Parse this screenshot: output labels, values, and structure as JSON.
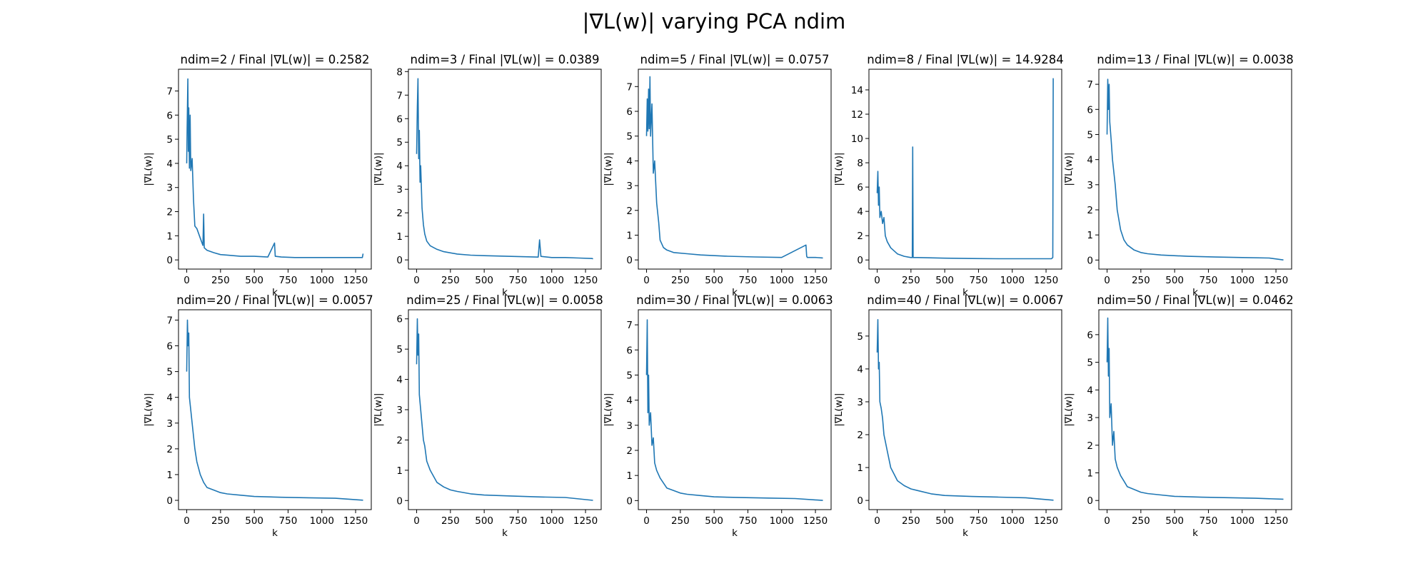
{
  "figure": {
    "title": "|∇L(w)| varying PCA ndim"
  },
  "colors": {
    "series": "#1f77b4"
  },
  "chart_data": [
    {
      "type": "line",
      "title": "ndim=2 / Final |∇L(w)| = 0.2582",
      "xlabel": "k",
      "ylabel": "|∇L(w)|",
      "xlim": [
        -61,
        1366
      ],
      "ylim": [
        -0.38,
        7.9
      ],
      "x_ticks": [
        0,
        250,
        500,
        750,
        1000,
        1250
      ],
      "y_ticks": [
        0,
        1,
        2,
        3,
        4,
        5,
        6,
        7
      ],
      "series": [
        {
          "x": [
            0,
            3,
            8,
            12,
            15,
            20,
            25,
            30,
            40,
            50,
            60,
            75,
            100,
            120,
            125,
            130,
            150,
            200,
            250,
            300,
            400,
            500,
            600,
            650,
            655,
            700,
            800,
            900,
            1000,
            1100,
            1200,
            1300,
            1305
          ],
          "y": [
            4.0,
            5.5,
            7.5,
            4.5,
            6.3,
            3.8,
            6.0,
            3.7,
            4.2,
            2.5,
            1.4,
            1.3,
            0.9,
            0.6,
            1.9,
            0.5,
            0.4,
            0.3,
            0.22,
            0.2,
            0.15,
            0.15,
            0.12,
            0.7,
            0.15,
            0.12,
            0.1,
            0.1,
            0.1,
            0.1,
            0.1,
            0.1,
            0.26
          ]
        }
      ]
    },
    {
      "type": "line",
      "title": "ndim=3 / Final |∇L(w)| = 0.0389",
      "xlabel": "k",
      "ylabel": "|∇L(w)|",
      "xlim": [
        -61,
        1366
      ],
      "ylim": [
        -0.39,
        8.1
      ],
      "x_ticks": [
        0,
        250,
        500,
        750,
        1000,
        1250
      ],
      "y_ticks": [
        0,
        1,
        2,
        3,
        4,
        5,
        6,
        7,
        8
      ],
      "series": [
        {
          "x": [
            0,
            5,
            10,
            15,
            20,
            25,
            30,
            40,
            50,
            60,
            75,
            100,
            150,
            200,
            300,
            400,
            500,
            700,
            900,
            910,
            920,
            1000,
            1100,
            1200,
            1300,
            1305
          ],
          "y": [
            4.5,
            6.5,
            7.7,
            4.3,
            5.5,
            3.3,
            4.0,
            2.2,
            1.5,
            1.1,
            0.8,
            0.6,
            0.45,
            0.35,
            0.25,
            0.2,
            0.18,
            0.15,
            0.12,
            0.85,
            0.15,
            0.1,
            0.1,
            0.08,
            0.06,
            0.04
          ]
        }
      ]
    },
    {
      "type": "line",
      "title": "ndim=5 / Final |∇L(w)| = 0.0757",
      "xlabel": "k",
      "ylabel": "|∇L(w)|",
      "xlim": [
        -61,
        1366
      ],
      "ylim": [
        -0.37,
        7.7
      ],
      "x_ticks": [
        0,
        250,
        500,
        750,
        1000,
        1250
      ],
      "y_ticks": [
        0,
        1,
        2,
        3,
        4,
        5,
        6,
        7
      ],
      "series": [
        {
          "x": [
            0,
            5,
            10,
            15,
            20,
            25,
            30,
            40,
            50,
            60,
            75,
            90,
            100,
            125,
            150,
            200,
            300,
            400,
            600,
            800,
            1000,
            1180,
            1185,
            1190,
            1250,
            1305
          ],
          "y": [
            5.0,
            6.5,
            5.2,
            6.9,
            5.3,
            7.4,
            5.0,
            6.3,
            3.5,
            4.0,
            2.3,
            1.5,
            0.8,
            0.5,
            0.4,
            0.3,
            0.25,
            0.2,
            0.15,
            0.12,
            0.1,
            0.6,
            0.15,
            0.1,
            0.1,
            0.08
          ]
        }
      ]
    },
    {
      "type": "line",
      "title": "ndim=8 / Final |∇L(w)| = 14.9284",
      "xlabel": "k",
      "ylabel": "|∇L(w)|",
      "xlim": [
        -61,
        1366
      ],
      "ylim": [
        -0.75,
        15.7
      ],
      "x_ticks": [
        0,
        250,
        500,
        750,
        1000,
        1250
      ],
      "y_ticks": [
        0,
        2,
        4,
        6,
        8,
        10,
        12,
        14
      ],
      "series": [
        {
          "x": [
            0,
            5,
            10,
            15,
            20,
            30,
            40,
            50,
            60,
            75,
            100,
            150,
            200,
            250,
            260,
            263,
            266,
            300,
            500,
            700,
            900,
            1100,
            1290,
            1300,
            1303,
            1305
          ],
          "y": [
            5.5,
            7.3,
            4.5,
            6.0,
            3.5,
            4.0,
            3.0,
            3.5,
            2.0,
            1.5,
            1.0,
            0.5,
            0.3,
            0.2,
            0.2,
            9.3,
            0.2,
            0.2,
            0.15,
            0.12,
            0.1,
            0.1,
            0.1,
            0.2,
            14.93,
            14.93
          ]
        }
      ]
    },
    {
      "type": "line",
      "title": "ndim=13 / Final |∇L(w)| = 0.0038",
      "xlabel": "k",
      "ylabel": "|∇L(w)|",
      "xlim": [
        -61,
        1366
      ],
      "ylim": [
        -0.36,
        7.6
      ],
      "x_ticks": [
        0,
        250,
        500,
        750,
        1000,
        1250
      ],
      "y_ticks": [
        0,
        1,
        2,
        3,
        4,
        5,
        6,
        7
      ],
      "series": [
        {
          "x": [
            0,
            5,
            10,
            15,
            20,
            30,
            40,
            50,
            60,
            75,
            100,
            125,
            150,
            200,
            250,
            300,
            400,
            600,
            800,
            1000,
            1200,
            1305
          ],
          "y": [
            5.0,
            7.2,
            6.0,
            7.0,
            5.5,
            4.8,
            4.0,
            3.5,
            3.0,
            2.0,
            1.2,
            0.8,
            0.6,
            0.4,
            0.3,
            0.25,
            0.2,
            0.15,
            0.12,
            0.1,
            0.08,
            0.004
          ]
        }
      ]
    },
    {
      "type": "line",
      "title": "ndim=20 / Final |∇L(w)| = 0.0057",
      "xlabel": "k",
      "ylabel": "|∇L(w)|",
      "xlim": [
        -61,
        1366
      ],
      "ylim": [
        -0.36,
        7.4
      ],
      "x_ticks": [
        0,
        250,
        500,
        750,
        1000,
        1250
      ],
      "y_ticks": [
        0,
        1,
        2,
        3,
        4,
        5,
        6,
        7
      ],
      "series": [
        {
          "x": [
            0,
            5,
            10,
            15,
            20,
            30,
            40,
            50,
            60,
            75,
            100,
            125,
            150,
            200,
            250,
            300,
            400,
            500,
            700,
            900,
            1100,
            1305
          ],
          "y": [
            5.0,
            7.0,
            6.0,
            6.5,
            4.0,
            3.5,
            3.0,
            2.5,
            2.0,
            1.5,
            1.0,
            0.7,
            0.5,
            0.4,
            0.3,
            0.25,
            0.2,
            0.15,
            0.12,
            0.1,
            0.08,
            0.006
          ]
        }
      ]
    },
    {
      "type": "line",
      "title": "ndim=25 / Final |∇L(w)| = 0.0058",
      "xlabel": "k",
      "ylabel": "|∇L(w)|",
      "xlim": [
        -61,
        1366
      ],
      "ylim": [
        -0.3,
        6.3
      ],
      "x_ticks": [
        0,
        250,
        500,
        750,
        1000,
        1250
      ],
      "y_ticks": [
        0,
        1,
        2,
        3,
        4,
        5,
        6
      ],
      "series": [
        {
          "x": [
            0,
            5,
            10,
            15,
            20,
            30,
            40,
            50,
            60,
            75,
            100,
            125,
            150,
            200,
            250,
            300,
            400,
            500,
            700,
            900,
            1100,
            1305
          ],
          "y": [
            4.5,
            6.0,
            4.8,
            5.5,
            3.5,
            3.0,
            2.5,
            2.0,
            1.8,
            1.3,
            1.0,
            0.8,
            0.6,
            0.45,
            0.35,
            0.3,
            0.22,
            0.18,
            0.15,
            0.12,
            0.1,
            0.006
          ]
        }
      ]
    },
    {
      "type": "line",
      "title": "ndim=30 / Final |∇L(w)| = 0.0063",
      "xlabel": "k",
      "ylabel": "|∇L(w)|",
      "xlim": [
        -61,
        1366
      ],
      "ylim": [
        -0.36,
        7.6
      ],
      "x_ticks": [
        0,
        250,
        500,
        750,
        1000,
        1250
      ],
      "y_ticks": [
        0,
        1,
        2,
        3,
        4,
        5,
        6,
        7
      ],
      "series": [
        {
          "x": [
            0,
            5,
            10,
            15,
            20,
            30,
            40,
            50,
            60,
            75,
            100,
            125,
            150,
            200,
            250,
            300,
            400,
            500,
            700,
            900,
            1100,
            1305
          ],
          "y": [
            5.0,
            7.2,
            3.5,
            5.0,
            3.0,
            3.5,
            2.2,
            2.5,
            1.5,
            1.2,
            0.9,
            0.7,
            0.5,
            0.4,
            0.3,
            0.25,
            0.2,
            0.15,
            0.12,
            0.1,
            0.08,
            0.006
          ]
        }
      ]
    },
    {
      "type": "line",
      "title": "ndim=40 / Final |∇L(w)| = 0.0067",
      "xlabel": "k",
      "ylabel": "|∇L(w)|",
      "xlim": [
        -61,
        1366
      ],
      "ylim": [
        -0.28,
        5.8
      ],
      "x_ticks": [
        0,
        250,
        500,
        750,
        1000,
        1250
      ],
      "y_ticks": [
        0,
        1,
        2,
        3,
        4,
        5
      ],
      "series": [
        {
          "x": [
            0,
            5,
            10,
            15,
            20,
            30,
            40,
            50,
            60,
            75,
            100,
            125,
            150,
            200,
            250,
            300,
            400,
            500,
            700,
            900,
            1100,
            1305
          ],
          "y": [
            4.5,
            5.5,
            4.0,
            4.2,
            3.0,
            2.8,
            2.5,
            2.0,
            1.8,
            1.5,
            1.0,
            0.8,
            0.6,
            0.45,
            0.35,
            0.3,
            0.2,
            0.15,
            0.12,
            0.1,
            0.08,
            0.007
          ]
        }
      ]
    },
    {
      "type": "line",
      "title": "ndim=50 / Final |∇L(w)| = 0.0462",
      "xlabel": "k",
      "ylabel": "|∇L(w)|",
      "xlim": [
        -61,
        1366
      ],
      "ylim": [
        -0.33,
        6.9
      ],
      "x_ticks": [
        0,
        250,
        500,
        750,
        1000,
        1250
      ],
      "y_ticks": [
        0,
        1,
        2,
        3,
        4,
        5,
        6
      ],
      "series": [
        {
          "x": [
            0,
            5,
            10,
            15,
            20,
            30,
            40,
            50,
            60,
            75,
            100,
            125,
            150,
            200,
            250,
            300,
            400,
            500,
            700,
            900,
            1100,
            1305
          ],
          "y": [
            5.0,
            6.6,
            4.5,
            5.5,
            3.0,
            3.5,
            2.0,
            2.5,
            1.5,
            1.2,
            0.9,
            0.7,
            0.5,
            0.4,
            0.3,
            0.25,
            0.2,
            0.15,
            0.12,
            0.1,
            0.08,
            0.046
          ]
        }
      ]
    }
  ]
}
